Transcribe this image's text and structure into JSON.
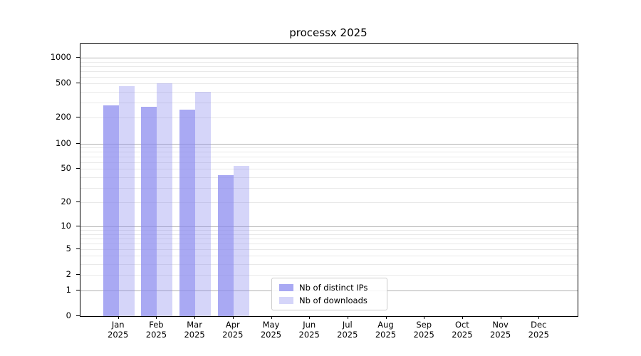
{
  "chart_data": {
    "type": "bar",
    "title": "processx 2025",
    "categories": [
      {
        "month": "Jan",
        "year": "2025"
      },
      {
        "month": "Feb",
        "year": "2025"
      },
      {
        "month": "Mar",
        "year": "2025"
      },
      {
        "month": "Apr",
        "year": "2025"
      },
      {
        "month": "May",
        "year": "2025"
      },
      {
        "month": "Jun",
        "year": "2025"
      },
      {
        "month": "Jul",
        "year": "2025"
      },
      {
        "month": "Aug",
        "year": "2025"
      },
      {
        "month": "Sep",
        "year": "2025"
      },
      {
        "month": "Oct",
        "year": "2025"
      },
      {
        "month": "Nov",
        "year": "2025"
      },
      {
        "month": "Dec",
        "year": "2025"
      }
    ],
    "series": [
      {
        "name": "Nb of distinct IPs",
        "color": "rgba(136,136,238,0.72)",
        "values": [
          278,
          270,
          250,
          42,
          null,
          null,
          null,
          null,
          null,
          null,
          null,
          null
        ]
      },
      {
        "name": "Nb of downloads",
        "color": "rgba(136,136,238,0.35)",
        "values": [
          470,
          500,
          400,
          54,
          null,
          null,
          null,
          null,
          null,
          null,
          null,
          null
        ]
      }
    ],
    "y_axis": {
      "scale": "log10(value+1)",
      "min": 0,
      "max": 1435,
      "ticks": [
        0,
        1,
        2,
        5,
        10,
        20,
        50,
        100,
        200,
        500,
        1000
      ],
      "major_gridlines": [
        1,
        10,
        100,
        1000
      ],
      "minor_gridlines": [
        2,
        3,
        4,
        5,
        6,
        7,
        8,
        9,
        20,
        30,
        40,
        50,
        60,
        70,
        80,
        90,
        200,
        300,
        400,
        500,
        600,
        700,
        800,
        900
      ]
    },
    "grid": true,
    "legend_position": "lower-left-of-center"
  },
  "colors": {
    "bar_distinct_ips": "rgba(136,136,238,0.72)",
    "bar_downloads": "rgba(136,136,238,0.35)",
    "grid_major": "#b2b2b2",
    "grid_minor": "#e9e9e9",
    "spine": "#000000",
    "legend_border": "#cccccc"
  }
}
